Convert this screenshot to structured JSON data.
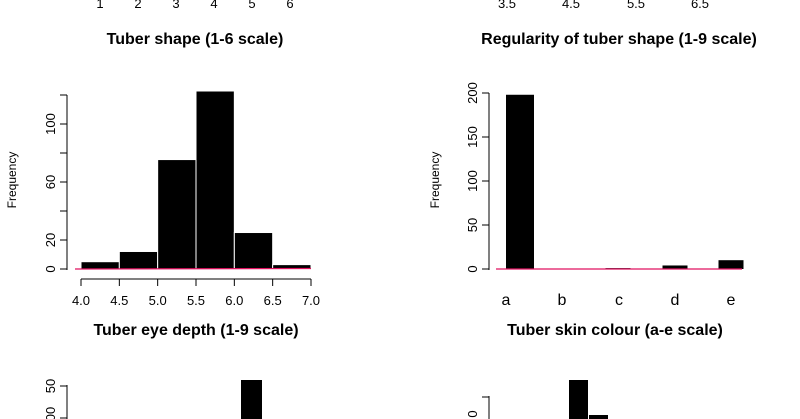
{
  "chart_data": [
    {
      "type": "bar",
      "title": "Tuber shape (1-6 scale)",
      "xlabel": "",
      "ylabel": "",
      "x_ticks": [
        "1",
        "2",
        "3",
        "4",
        "5",
        "6"
      ],
      "partial": "only x tick labels and title visible (cropped at top)"
    },
    {
      "type": "bar",
      "title": "Regularity of tuber shape (1-9 scale)",
      "xlabel": "",
      "ylabel": "",
      "x_ticks": [
        "3.5",
        "4.5",
        "5.5",
        "6.5"
      ],
      "partial": "only x tick labels and title visible (cropped at top)"
    },
    {
      "type": "bar",
      "title": "Tuber eye depth (1-9 scale)",
      "ylabel": "Frequency",
      "x_ticks": [
        "4.0",
        "4.5",
        "5.0",
        "5.5",
        "6.0",
        "6.5",
        "7.0"
      ],
      "y_ticks": [
        "0",
        "20",
        "60",
        "100"
      ],
      "xlim": [
        4.0,
        7.0
      ],
      "ylim": [
        0,
        120
      ],
      "bins": [
        {
          "x0": 4.0,
          "x1": 4.5,
          "value": 5
        },
        {
          "x0": 4.5,
          "x1": 5.0,
          "value": 12
        },
        {
          "x0": 5.0,
          "x1": 5.5,
          "value": 75
        },
        {
          "x0": 5.5,
          "x1": 6.0,
          "value": 122
        },
        {
          "x0": 6.0,
          "x1": 6.5,
          "value": 25
        },
        {
          "x0": 6.5,
          "x1": 7.0,
          "value": 3
        }
      ],
      "density_line_color": "#e0115f"
    },
    {
      "type": "bar",
      "title": "Tuber skin colour (a-e scale)",
      "ylabel": "Frequency",
      "categories": [
        "a",
        "b",
        "c",
        "d",
        "e"
      ],
      "values": [
        198,
        0,
        1,
        4,
        10
      ],
      "y_ticks": [
        "0",
        "50",
        "100",
        "150",
        "200"
      ],
      "ylim": [
        0,
        200
      ],
      "density_line_color": "#e0115f"
    },
    {
      "type": "bar",
      "partial": "cropped at bottom",
      "y_ticks": [
        "50",
        "00"
      ]
    },
    {
      "type": "bar",
      "partial": "cropped at bottom",
      "y_ticks": [
        "0"
      ]
    }
  ]
}
